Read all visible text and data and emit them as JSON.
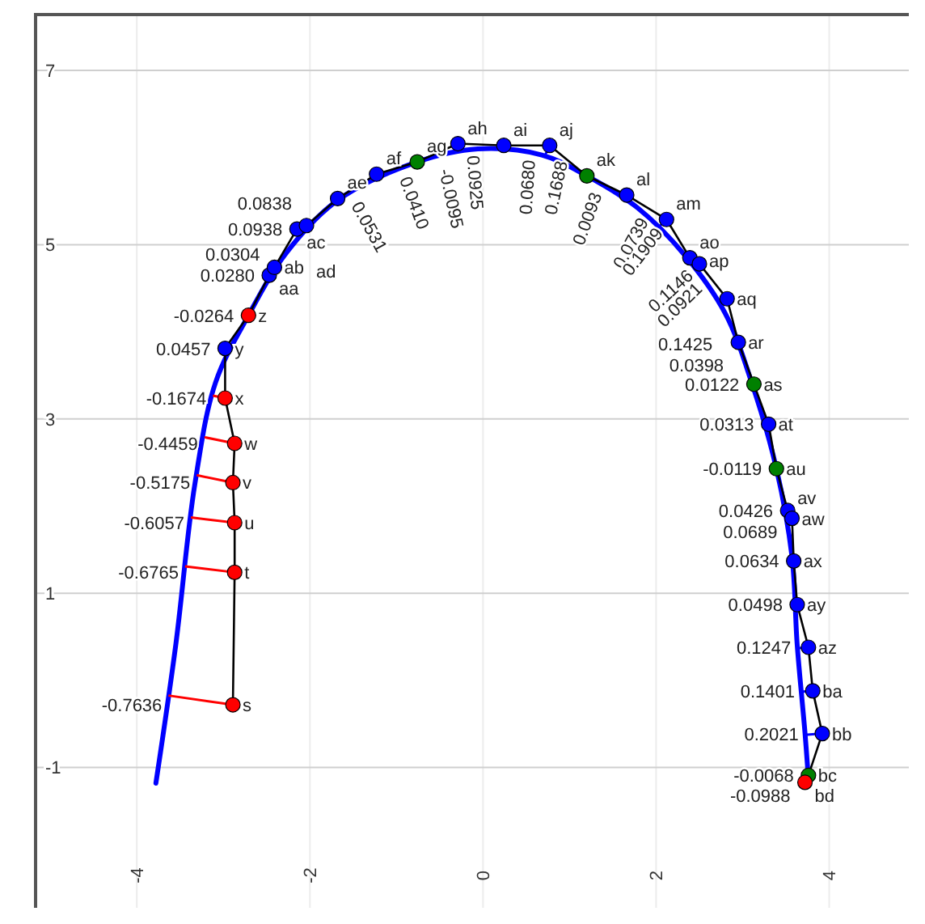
{
  "chart_data": {
    "type": "line",
    "xlim": [
      -5.17,
      4.92
    ],
    "ylim": [
      -2.61,
      7.66
    ],
    "xticks": [
      -4,
      -2,
      0,
      2,
      4
    ],
    "yticks": [
      -1,
      1,
      3,
      5,
      7
    ],
    "grid": true,
    "series": [
      {
        "color": "#0000ff",
        "marker": "none",
        "x": [
          -3.78,
          -3.55,
          -3.33,
          -3.09,
          -2.71,
          -2.27,
          -1.68,
          -0.76,
          -0.06,
          0.68,
          1.2,
          1.79,
          2.34,
          2.8,
          3.11,
          3.39,
          3.57,
          3.63,
          3.72,
          3.76
        ],
        "values": [
          -1.18,
          0.41,
          2.25,
          3.42,
          4.19,
          4.91,
          5.51,
          5.95,
          6.1,
          6.03,
          5.79,
          5.42,
          4.87,
          4.21,
          3.4,
          2.43,
          1.42,
          0.41,
          -0.6,
          -1.13
        ]
      },
      {
        "color": "#000000",
        "marker": "circle",
        "x": [
          -2.89,
          -2.87,
          -2.87,
          -2.89,
          -2.87,
          -2.98,
          -2.98,
          -2.71,
          -2.47,
          -2.41,
          -2.15,
          -2.04,
          -1.68,
          -1.23,
          -0.76,
          -0.29,
          0.24,
          0.77,
          1.2,
          1.66,
          2.12,
          2.39,
          2.5,
          2.82,
          2.95,
          3.13,
          3.3,
          3.39,
          3.52,
          3.57,
          3.59,
          3.63,
          3.76,
          3.81,
          3.92,
          3.76,
          3.72
        ],
        "values": [
          -0.28,
          1.24,
          1.81,
          2.27,
          2.72,
          3.24,
          3.81,
          4.19,
          4.65,
          4.74,
          5.18,
          5.22,
          5.53,
          5.81,
          5.95,
          6.16,
          6.14,
          6.14,
          5.79,
          5.57,
          5.29,
          4.85,
          4.78,
          4.38,
          3.88,
          3.4,
          2.94,
          2.43,
          1.95,
          1.86,
          1.37,
          0.87,
          0.38,
          -0.12,
          -0.61,
          -1.09,
          -1.17
        ],
        "colors": [
          "#ff0000",
          "#ff0000",
          "#ff0000",
          "#ff0000",
          "#ff0000",
          "#ff0000",
          "#0000ff",
          "#ff0000",
          "#0000ff",
          "#0000ff",
          "#0000ff",
          "#0000ff",
          "#0000ff",
          "#0000ff",
          "#008000",
          "#0000ff",
          "#0000ff",
          "#0000ff",
          "#008000",
          "#0000ff",
          "#0000ff",
          "#0000ff",
          "#0000ff",
          "#0000ff",
          "#0000ff",
          "#008000",
          "#0000ff",
          "#008000",
          "#0000ff",
          "#0000ff",
          "#0000ff",
          "#0000ff",
          "#0000ff",
          "#0000ff",
          "#0000ff",
          "#008000",
          "#ff0000"
        ]
      }
    ],
    "annotations": [
      {
        "text": "s",
        "x": -2.89,
        "y": -0.28
      },
      {
        "text": "-0.7636",
        "x": -2.89,
        "y": -0.28
      },
      {
        "text": "t",
        "x": -2.87,
        "y": 1.24
      },
      {
        "text": "-0.6765",
        "x": -2.87,
        "y": 1.24
      },
      {
        "text": "u",
        "x": -2.87,
        "y": 1.81
      },
      {
        "text": "-0.6057",
        "x": -2.87,
        "y": 1.81
      },
      {
        "text": "v",
        "x": -2.89,
        "y": 2.27
      },
      {
        "text": "-0.5175",
        "x": -2.89,
        "y": 2.27
      },
      {
        "text": "w",
        "x": -2.87,
        "y": 2.72
      },
      {
        "text": "-0.4459",
        "x": -2.87,
        "y": 2.72
      },
      {
        "text": "x",
        "x": -2.98,
        "y": 3.24
      },
      {
        "text": "-0.1674",
        "x": -2.98,
        "y": 3.24
      },
      {
        "text": "y",
        "x": -2.98,
        "y": 3.81
      },
      {
        "text": "0.0457",
        "x": -2.98,
        "y": 3.81
      },
      {
        "text": "z",
        "x": -2.71,
        "y": 4.19
      },
      {
        "text": "-0.0264",
        "x": -2.71,
        "y": 4.19
      },
      {
        "text": "aa",
        "x": -2.47,
        "y": 4.65
      },
      {
        "text": "0.0280",
        "x": -2.47,
        "y": 4.65
      },
      {
        "text": "ab",
        "x": -2.41,
        "y": 4.74
      },
      {
        "text": "0.0304",
        "x": -2.41,
        "y": 4.74
      },
      {
        "text": "ac",
        "x": -2.15,
        "y": 5.18
      },
      {
        "text": "0.0938",
        "x": -2.15,
        "y": 5.18
      },
      {
        "text": "ad",
        "x": -2.04,
        "y": 5.22
      },
      {
        "text": "0.0838",
        "x": -2.04,
        "y": 5.22
      },
      {
        "text": "ae",
        "x": -1.68,
        "y": 5.53
      },
      {
        "text": "0.0531",
        "x": -1.68,
        "y": 5.53
      },
      {
        "text": "af",
        "x": -1.23,
        "y": 5.81
      },
      {
        "text": "0.0410",
        "x": -1.23,
        "y": 5.81
      },
      {
        "text": "ag",
        "x": -0.76,
        "y": 5.95
      },
      {
        "text": "-0.0095",
        "x": -0.76,
        "y": 5.95
      },
      {
        "text": "ah",
        "x": -0.29,
        "y": 6.16
      },
      {
        "text": "0.0925",
        "x": -0.29,
        "y": 6.16
      },
      {
        "text": "ai",
        "x": 0.24,
        "y": 6.14
      },
      {
        "text": "0.0680",
        "x": 0.24,
        "y": 6.14
      },
      {
        "text": "aj",
        "x": 0.77,
        "y": 6.14
      },
      {
        "text": "0.1688",
        "x": 0.77,
        "y": 6.14
      },
      {
        "text": "ak",
        "x": 1.2,
        "y": 5.79
      },
      {
        "text": "0.0093",
        "x": 1.2,
        "y": 5.79
      },
      {
        "text": "al",
        "x": 1.66,
        "y": 5.57
      },
      {
        "text": "0.0739",
        "x": 1.66,
        "y": 5.57
      },
      {
        "text": "am",
        "x": 2.12,
        "y": 5.29
      },
      {
        "text": "0.1909",
        "x": 2.12,
        "y": 5.29
      },
      {
        "text": "ao",
        "x": 2.39,
        "y": 4.85
      },
      {
        "text": "0.0921",
        "x": 2.39,
        "y": 4.85
      },
      {
        "text": "ap",
        "x": 2.5,
        "y": 4.78
      },
      {
        "text": "0.1146",
        "x": 2.5,
        "y": 4.78
      },
      {
        "text": "aq",
        "x": 2.82,
        "y": 4.38
      },
      {
        "text": "0.1425",
        "x": 2.82,
        "y": 4.38
      },
      {
        "text": "ar",
        "x": 2.95,
        "y": 3.88
      },
      {
        "text": "0.0398",
        "x": 2.95,
        "y": 3.88
      },
      {
        "text": "as",
        "x": 3.13,
        "y": 3.4
      },
      {
        "text": "0.0122",
        "x": 3.13,
        "y": 3.4
      },
      {
        "text": "at",
        "x": 3.3,
        "y": 2.94
      },
      {
        "text": "0.0313",
        "x": 3.3,
        "y": 2.94
      },
      {
        "text": "au",
        "x": 3.39,
        "y": 2.43
      },
      {
        "text": "-0.0119",
        "x": 3.39,
        "y": 2.43
      },
      {
        "text": "av",
        "x": 3.52,
        "y": 1.95
      },
      {
        "text": "0.0426",
        "x": 3.52,
        "y": 1.95
      },
      {
        "text": "aw",
        "x": 3.57,
        "y": 1.86
      },
      {
        "text": "0.0689",
        "x": 3.57,
        "y": 1.86
      },
      {
        "text": "ax",
        "x": 3.59,
        "y": 1.37
      },
      {
        "text": "0.0634",
        "x": 3.59,
        "y": 1.37
      },
      {
        "text": "ay",
        "x": 3.63,
        "y": 0.87
      },
      {
        "text": "0.0498",
        "x": 3.63,
        "y": 0.87
      },
      {
        "text": "az",
        "x": 3.76,
        "y": 0.38
      },
      {
        "text": "0.1247",
        "x": 3.76,
        "y": 0.38
      },
      {
        "text": "ba",
        "x": 3.81,
        "y": -0.12
      },
      {
        "text": "0.1401",
        "x": 3.81,
        "y": -0.12
      },
      {
        "text": "bb",
        "x": 3.92,
        "y": -0.61
      },
      {
        "text": "0.2021",
        "x": 3.92,
        "y": -0.61
      },
      {
        "text": "bc",
        "x": 3.76,
        "y": -1.09
      },
      {
        "text": "-0.0068",
        "x": 3.76,
        "y": -1.09
      },
      {
        "text": "bd",
        "x": 3.72,
        "y": -1.17
      },
      {
        "text": "-0.0988",
        "x": 3.72,
        "y": -1.17
      }
    ]
  }
}
